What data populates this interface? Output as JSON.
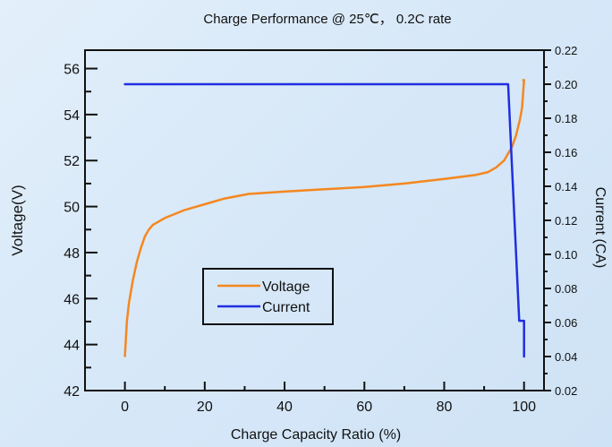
{
  "chart_data": {
    "type": "line",
    "title": "Charge Performance @ 25℃， 0.2C rate",
    "xlabel": "Charge Capacity Ratio (%)",
    "ylabel": "Voltage(V)",
    "y2label": "Current (CA)",
    "xlim": [
      -10,
      105
    ],
    "ylim": [
      42,
      56.8
    ],
    "y2lim": [
      0.02,
      0.22
    ],
    "x_ticks": [
      0,
      20,
      40,
      60,
      80,
      100
    ],
    "y_ticks": [
      42,
      44,
      46,
      48,
      50,
      52,
      54,
      56
    ],
    "y2_ticks": [
      "0.02",
      "0.04",
      "0.06",
      "0.08",
      "0.10",
      "0.12",
      "0.14",
      "0.16",
      "0.18",
      "0.20",
      "0.22"
    ],
    "legend": {
      "placement": "center-left"
    },
    "series": [
      {
        "name": "Voltage",
        "axis": "left",
        "color": "#f5871f",
        "x": [
          0,
          0.5,
          1,
          2,
          3,
          4,
          5,
          6,
          7,
          10,
          15,
          20,
          25,
          31,
          40,
          50,
          60,
          70,
          80,
          88,
          91,
          93,
          95,
          97,
          98,
          99,
          99.5,
          100,
          99.8
        ],
        "y": [
          43.5,
          45.0,
          45.8,
          46.8,
          47.6,
          48.2,
          48.7,
          49.0,
          49.2,
          49.5,
          49.85,
          50.1,
          50.35,
          50.55,
          50.65,
          50.75,
          50.85,
          51.0,
          51.2,
          51.38,
          51.5,
          51.7,
          52.0,
          52.6,
          53.1,
          53.8,
          54.3,
          55.5,
          55.5
        ]
      },
      {
        "name": "Current",
        "axis": "right",
        "color": "#1f2fe0",
        "x": [
          0,
          96,
          98.8,
          99.9,
          100,
          100
        ],
        "y": [
          0.2,
          0.2,
          0.061,
          0.061,
          0.061,
          0.04
        ]
      }
    ]
  }
}
